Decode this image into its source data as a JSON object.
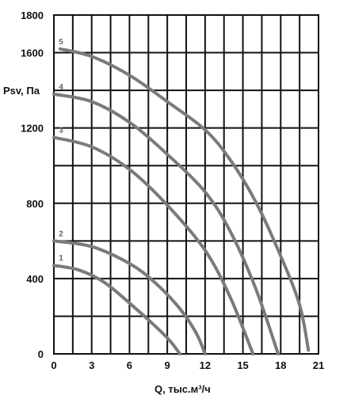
{
  "chart_data": {
    "type": "line",
    "xlabel": "Q, тыс.м³/ч",
    "ylabel": "Psv, Па",
    "xlim": [
      0,
      21
    ],
    "ylim": [
      0,
      1800
    ],
    "x_ticks": [
      0,
      3,
      6,
      9,
      12,
      15,
      18,
      21
    ],
    "y_ticks": [
      0,
      400,
      800,
      1200,
      1600,
      1800
    ],
    "y_tick_labels": [
      "0",
      "400",
      "800",
      "1200",
      "1600",
      "1800"
    ],
    "x_grid_step": 1.5,
    "y_grid_step": 200,
    "grid": true,
    "series": [
      {
        "name": "1",
        "color": "#7a7a7a",
        "x": [
          0,
          2,
          4,
          6,
          8,
          9.2,
          10
        ],
        "y": [
          470,
          445,
          380,
          270,
          150,
          70,
          0
        ]
      },
      {
        "name": "2",
        "color": "#7a7a7a",
        "x": [
          0,
          3,
          6,
          8,
          10,
          11.3,
          12
        ],
        "y": [
          600,
          570,
          480,
          380,
          240,
          110,
          0
        ]
      },
      {
        "name": "3",
        "color": "#7a7a7a",
        "x": [
          0,
          3,
          6,
          9,
          12,
          14,
          15.8
        ],
        "y": [
          1150,
          1100,
          980,
          790,
          550,
          300,
          0
        ]
      },
      {
        "name": "4",
        "color": "#7a7a7a",
        "x": [
          0,
          3,
          6,
          9,
          12,
          14,
          16,
          17.8
        ],
        "y": [
          1380,
          1340,
          1230,
          1060,
          860,
          650,
          350,
          0
        ]
      },
      {
        "name": "5",
        "color": "#7a7a7a",
        "x": [
          0.5,
          3,
          6,
          9,
          12,
          14,
          16,
          18,
          19.5,
          20.2
        ],
        "y": [
          1620,
          1580,
          1480,
          1340,
          1190,
          1030,
          810,
          520,
          260,
          20
        ]
      }
    ]
  }
}
